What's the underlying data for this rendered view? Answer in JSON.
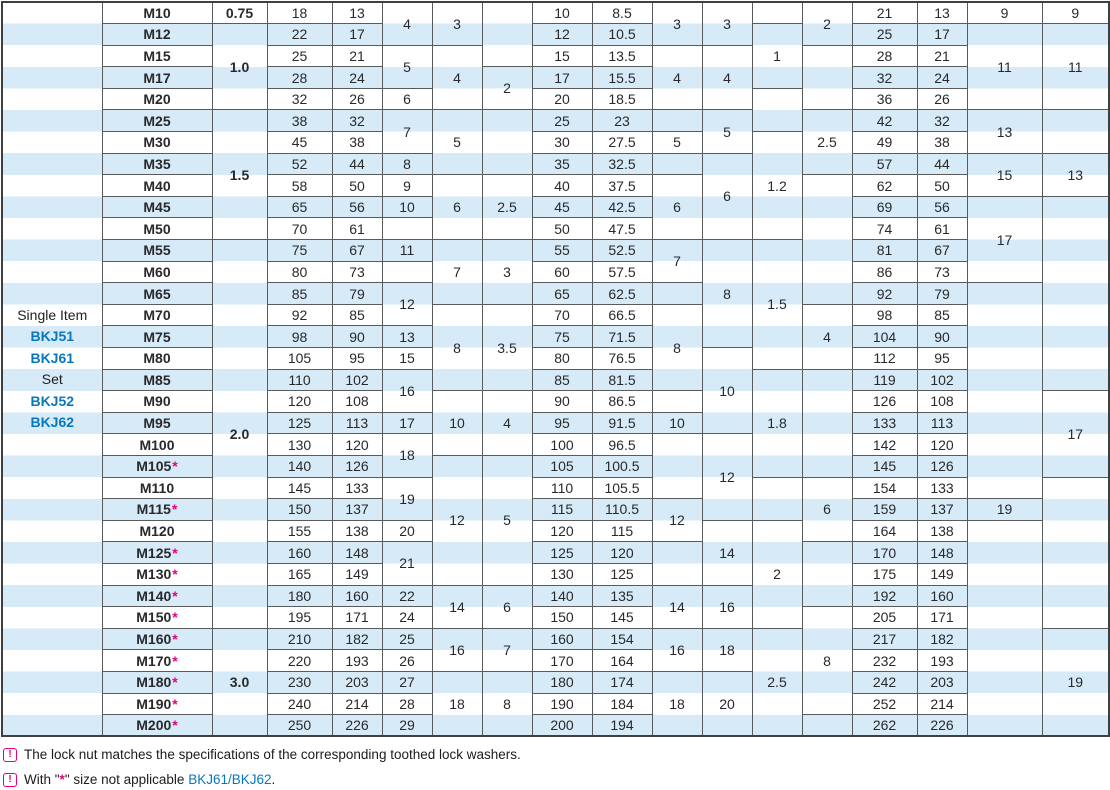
{
  "colors": {
    "accent_blue": "#0878bd",
    "magenta": "#e5017f",
    "row_stripe": "#d6eaf7",
    "grid_line": "#595a5c",
    "frame": "#3e3f41"
  },
  "side": {
    "line1": "Single Item",
    "code1a": "BKJ51",
    "code1b": "BKJ61",
    "line2": "Set",
    "code2a": "BKJ52",
    "code2b": "BKJ62"
  },
  "table": {
    "star_mark": "*",
    "sizes": [
      "M10",
      "M12",
      "M15",
      "M17",
      "M20",
      "M25",
      "M30",
      "M35",
      "M40",
      "M45",
      "M50",
      "M55",
      "M60",
      "M65",
      "M70",
      "M75",
      "M80",
      "M85",
      "M90",
      "M95",
      "M100",
      "M105*",
      "M110",
      "M115*",
      "M120",
      "M125*",
      "M130*",
      "M140*",
      "M150*",
      "M160*",
      "M170*",
      "M180*",
      "M190*",
      "M200*"
    ],
    "columns": [
      {
        "id": "pitch",
        "type": "merged",
        "cells": [
          [
            "0.75",
            1
          ],
          [
            "1.0",
            4
          ],
          [
            "1.5",
            6
          ],
          [
            "2.0",
            18
          ],
          [
            "3.0",
            5
          ]
        ]
      },
      {
        "id": "c1",
        "type": "plain",
        "values": [
          "18",
          "22",
          "25",
          "28",
          "32",
          "38",
          "45",
          "52",
          "58",
          "65",
          "70",
          "75",
          "80",
          "85",
          "92",
          "98",
          "105",
          "110",
          "120",
          "125",
          "130",
          "140",
          "145",
          "150",
          "155",
          "160",
          "165",
          "180",
          "195",
          "210",
          "220",
          "230",
          "240",
          "250"
        ]
      },
      {
        "id": "c2",
        "type": "plain",
        "values": [
          "13",
          "17",
          "21",
          "24",
          "26",
          "32",
          "38",
          "44",
          "50",
          "56",
          "61",
          "67",
          "73",
          "79",
          "85",
          "90",
          "95",
          "102",
          "108",
          "113",
          "120",
          "126",
          "133",
          "137",
          "138",
          "148",
          "149",
          "160",
          "171",
          "182",
          "193",
          "203",
          "214",
          "226"
        ]
      },
      {
        "id": "c3",
        "type": "merged",
        "cells": [
          [
            "4",
            2
          ],
          [
            "5",
            2
          ],
          [
            "6",
            1
          ],
          [
            "7",
            2
          ],
          [
            "8",
            1
          ],
          [
            "9",
            1
          ],
          [
            "10",
            1
          ],
          [
            "",
            1
          ],
          [
            "11",
            1
          ],
          [
            "",
            1
          ],
          [
            "12",
            2
          ],
          [
            "13",
            1
          ],
          [
            "15",
            1
          ],
          [
            "16",
            2
          ],
          [
            "17",
            1
          ],
          [
            "18",
            2
          ],
          [
            "19",
            2
          ],
          [
            "20",
            1
          ],
          [
            "21",
            2
          ],
          [
            "22",
            1
          ],
          [
            "24",
            1
          ],
          [
            "25",
            1
          ],
          [
            "26",
            1
          ],
          [
            "27",
            1
          ],
          [
            "28",
            1
          ],
          [
            "29",
            1
          ]
        ]
      },
      {
        "id": "c4",
        "type": "merged",
        "cells": [
          [
            "3",
            2
          ],
          [
            "4",
            3
          ],
          [
            "5",
            3
          ],
          [
            "6",
            3
          ],
          [
            "7",
            3
          ],
          [
            "8",
            4
          ],
          [
            "10",
            3
          ],
          [
            "12",
            6
          ],
          [
            "14",
            2
          ],
          [
            "16",
            2
          ],
          [
            "18",
            3
          ]
        ]
      },
      {
        "id": "c5",
        "type": "merged",
        "cells": [
          [
            "",
            3
          ],
          [
            "2",
            2
          ],
          [
            "",
            3
          ],
          [
            "2.5",
            3
          ],
          [
            "3",
            3
          ],
          [
            "3.5",
            4
          ],
          [
            "4",
            3
          ],
          [
            "5",
            6
          ],
          [
            "6",
            2
          ],
          [
            "7",
            2
          ],
          [
            "8",
            3
          ]
        ]
      },
      {
        "id": "c6",
        "type": "plain",
        "values": [
          "10",
          "12",
          "15",
          "17",
          "20",
          "25",
          "30",
          "35",
          "40",
          "45",
          "50",
          "55",
          "60",
          "65",
          "70",
          "75",
          "80",
          "85",
          "90",
          "95",
          "100",
          "105",
          "110",
          "115",
          "120",
          "125",
          "130",
          "140",
          "150",
          "160",
          "170",
          "180",
          "190",
          "200"
        ]
      },
      {
        "id": "c7",
        "type": "plain",
        "values": [
          "8.5",
          "10.5",
          "13.5",
          "15.5",
          "18.5",
          "23",
          "27.5",
          "32.5",
          "37.5",
          "42.5",
          "47.5",
          "52.5",
          "57.5",
          "62.5",
          "66.5",
          "71.5",
          "76.5",
          "81.5",
          "86.5",
          "91.5",
          "96.5",
          "100.5",
          "105.5",
          "110.5",
          "115",
          "120",
          "125",
          "135",
          "145",
          "154",
          "164",
          "174",
          "184",
          "194"
        ]
      },
      {
        "id": "c8",
        "type": "merged",
        "cells": [
          [
            "3",
            2
          ],
          [
            "4",
            3
          ],
          [
            "",
            1
          ],
          [
            "5",
            1
          ],
          [
            "",
            1
          ],
          [
            "6",
            3
          ],
          [
            "7",
            2
          ],
          [
            "",
            1
          ],
          [
            "8",
            4
          ],
          [
            "",
            1
          ],
          [
            "10",
            1
          ],
          [
            "",
            3
          ],
          [
            "12",
            2
          ],
          [
            "",
            2
          ],
          [
            "14",
            2
          ],
          [
            "16",
            2
          ],
          [
            "18",
            3
          ]
        ]
      },
      {
        "id": "c9",
        "type": "merged",
        "cells": [
          [
            "3",
            2
          ],
          [
            "4",
            3
          ],
          [
            "5",
            2
          ],
          [
            "6",
            4
          ],
          [
            "8",
            5
          ],
          [
            "10",
            4
          ],
          [
            "12",
            4
          ],
          [
            "14",
            3
          ],
          [
            "16",
            2
          ],
          [
            "18",
            2
          ],
          [
            "20",
            3
          ]
        ]
      },
      {
        "id": "c10",
        "type": "merged",
        "cells": [
          [
            "",
            1
          ],
          [
            "1",
            3
          ],
          [
            "",
            2
          ],
          [
            "1.2",
            5
          ],
          [
            "1.5",
            6
          ],
          [
            "1.8",
            5
          ],
          [
            "",
            2
          ],
          [
            "2",
            5
          ],
          [
            "2.5",
            5
          ]
        ]
      },
      {
        "id": "c11",
        "type": "merged",
        "cells": [
          [
            "2",
            2
          ],
          [
            "",
            3
          ],
          [
            "2.5",
            3
          ],
          [
            "",
            6
          ],
          [
            "4",
            3
          ],
          [
            "",
            5
          ],
          [
            "6",
            3
          ],
          [
            "",
            3
          ],
          [
            "8",
            5
          ],
          [
            "",
            1
          ]
        ]
      },
      {
        "id": "c12",
        "type": "plain",
        "values": [
          "21",
          "25",
          "28",
          "32",
          "36",
          "42",
          "49",
          "57",
          "62",
          "69",
          "74",
          "81",
          "86",
          "92",
          "98",
          "104",
          "112",
          "119",
          "126",
          "133",
          "142",
          "145",
          "154",
          "159",
          "164",
          "170",
          "175",
          "192",
          "205",
          "217",
          "232",
          "242",
          "252",
          "262"
        ]
      },
      {
        "id": "c13",
        "type": "plain",
        "values": [
          "13",
          "17",
          "21",
          "24",
          "26",
          "32",
          "38",
          "44",
          "50",
          "56",
          "61",
          "67",
          "73",
          "79",
          "85",
          "90",
          "95",
          "102",
          "108",
          "113",
          "120",
          "126",
          "133",
          "137",
          "138",
          "148",
          "149",
          "160",
          "171",
          "182",
          "193",
          "203",
          "214",
          "226"
        ]
      },
      {
        "id": "c14",
        "type": "merged",
        "cells": [
          [
            "9",
            1
          ],
          [
            "11",
            4
          ],
          [
            "13",
            2
          ],
          [
            "15",
            2
          ],
          [
            "17",
            4
          ],
          [
            "",
            10
          ],
          [
            "19",
            1
          ],
          [
            "",
            10
          ]
        ]
      },
      {
        "id": "c15",
        "type": "merged",
        "cells": [
          [
            "9",
            1
          ],
          [
            "11",
            4
          ],
          [
            "",
            2
          ],
          [
            "13",
            2
          ],
          [
            "",
            9
          ],
          [
            "17",
            4
          ],
          [
            "",
            7
          ],
          [
            "19",
            5
          ]
        ]
      }
    ]
  },
  "notes": {
    "n1": "The lock nut matches the specifications of the corresponding toothed lock washers.",
    "icon_glyph": "!",
    "n2_prefix": "With \"",
    "n2_star": "*",
    "n2_mid": "\" size not applicable ",
    "n2_link": "BKJ61/BKJ62",
    "n2_suffix": "."
  }
}
